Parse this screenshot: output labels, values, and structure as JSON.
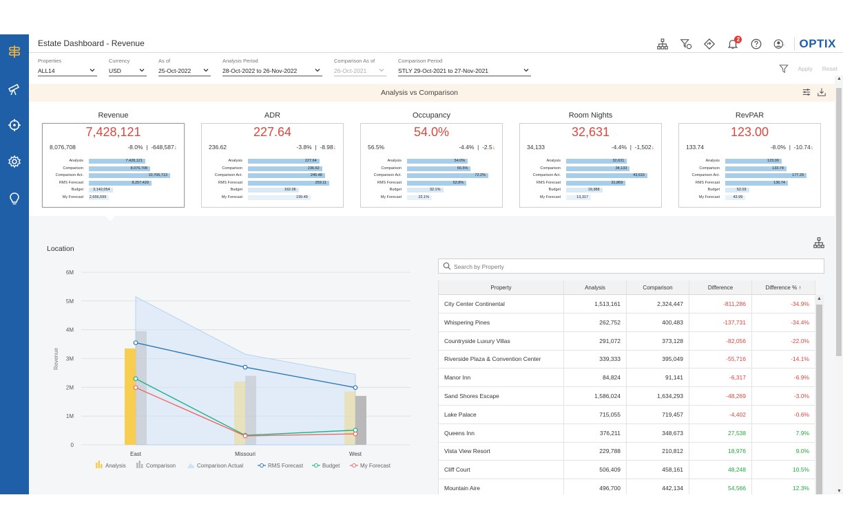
{
  "header": {
    "title": "Estate Dashboard - Revenue",
    "notification_count": "2",
    "brand": "OPTIX",
    "icons": [
      "hierarchy-icon",
      "filter-edit-icon",
      "diamond-nav-icon",
      "bell-icon",
      "help-icon",
      "user-icon"
    ]
  },
  "sidebar": {
    "items": [
      {
        "icon": "signpost-icon",
        "active": true
      },
      {
        "icon": "telescope-icon"
      },
      {
        "icon": "crosshair-icon"
      },
      {
        "icon": "gear-icon"
      },
      {
        "icon": "lightbulb-icon"
      }
    ]
  },
  "filters": {
    "properties": {
      "label": "Properties",
      "value": "ALL14"
    },
    "currency": {
      "label": "Currency",
      "value": "USD"
    },
    "as_of": {
      "label": "As of",
      "value": "25-Oct-2022"
    },
    "analysis_period": {
      "label": "Analysis Period",
      "value": "28-Oct-2022 to 26-Nov-2022"
    },
    "comparison_as_of": {
      "label": "Comparison As of",
      "value": "26-Oct-2021"
    },
    "comparison_period": {
      "label": "Comparison Period",
      "value": "STLY 29-Oct-2021 to 27-Nov-2021"
    },
    "apply_label": "Apply",
    "reset_label": "Reset"
  },
  "banner": {
    "title": "Analysis vs Comparison"
  },
  "bar_labels": [
    "Analysis",
    "Comparison",
    "Comparison Act.",
    "RMS Forecast",
    "Budget",
    "My Forecast"
  ],
  "kpis": [
    {
      "title": "Revenue",
      "value": "7,428,121",
      "comparison": "8,076,708",
      "diff_pct": "-8.0%",
      "diff_abs": "-648,587",
      "selected": true,
      "bars": [
        "7,428,121",
        "8,076,708",
        "10,706,713",
        "8,257,429",
        "3,142,054",
        "2,656,599"
      ],
      "fractions": [
        0.694,
        0.754,
        1.0,
        0.771,
        0.293,
        0.248
      ]
    },
    {
      "title": "ADR",
      "value": "227.64",
      "comparison": "236.62",
      "diff_pct": "-3.8%",
      "diff_abs": "-8.98",
      "selected": false,
      "bars": [
        "227.64",
        "236.62",
        "245.48",
        "259.11",
        "162.06",
        "199.49"
      ],
      "fractions": [
        0.879,
        0.913,
        0.947,
        1.0,
        0.625,
        0.77
      ]
    },
    {
      "title": "Occupancy",
      "value": "54.0%",
      "comparison": "56.5%",
      "diff_pct": "-4.4%",
      "diff_abs": "-2.5",
      "selected": false,
      "bars": [
        "54.0%",
        "56.5%",
        "72.2%",
        "52.8%",
        "32.1%",
        "22.1%"
      ],
      "fractions": [
        0.748,
        0.783,
        1.0,
        0.731,
        0.445,
        0.306
      ]
    },
    {
      "title": "Room Nights",
      "value": "32,631",
      "comparison": "34,133",
      "diff_pct": "-4.4%",
      "diff_abs": "-1,502",
      "selected": false,
      "bars": [
        "32,631",
        "34,133",
        "43,615",
        "31,869",
        "19,388",
        "13,317"
      ],
      "fractions": [
        0.748,
        0.783,
        1.0,
        0.731,
        0.445,
        0.305
      ]
    },
    {
      "title": "RevPAR",
      "value": "123.00",
      "comparison": "133.74",
      "diff_pct": "-8.0%",
      "diff_abs": "-10.74",
      "selected": false,
      "bars": [
        "123.00",
        "133.74",
        "177.29",
        "136.74",
        "52.03",
        "43.99"
      ],
      "fractions": [
        0.694,
        0.754,
        1.0,
        0.771,
        0.293,
        0.248
      ]
    }
  ],
  "location": {
    "title": "Location"
  },
  "chart_data": {
    "type": "bar",
    "ylabel": "Revenue",
    "xlabel": "",
    "ylim": [
      0,
      6000000
    ],
    "yticks": [
      "0",
      "1M",
      "2M",
      "3M",
      "4M",
      "5M",
      "6M"
    ],
    "categories": [
      "East",
      "Missouri",
      "West"
    ],
    "series": [
      {
        "name": "Analysis",
        "type": "bar",
        "color": "#f7ce4f",
        "values": [
          3350000,
          2200000,
          1850000
        ]
      },
      {
        "name": "Comparison",
        "type": "bar",
        "color": "#b9b9b9",
        "values": [
          3950000,
          2400000,
          1700000
        ]
      },
      {
        "name": "Comparison Actual",
        "type": "area",
        "color": "#cfe3f7",
        "values": [
          5150000,
          3150000,
          2450000
        ]
      },
      {
        "name": "RMS Forecast",
        "type": "line",
        "color": "#2b78b8",
        "values": [
          3550000,
          2700000,
          1990000
        ]
      },
      {
        "name": "Budget",
        "type": "line",
        "color": "#1db386",
        "values": [
          2300000,
          330000,
          510000
        ]
      },
      {
        "name": "My Forecast",
        "type": "line",
        "color": "#ee6a63",
        "values": [
          1990000,
          310000,
          380000
        ]
      }
    ],
    "legend_position": "bottom"
  },
  "search": {
    "placeholder": "Search by Property"
  },
  "table": {
    "headers": [
      "Property",
      "Analysis",
      "Comparison",
      "Difference",
      "Difference %"
    ],
    "sort_indicator": "↑",
    "rows": [
      {
        "property": "City Center Continental",
        "analysis": "1,513,161",
        "comparison": "2,324,447",
        "difference": "-811,286",
        "difference_pct": "-34.9%",
        "sign": "neg"
      },
      {
        "property": "Whispering Pines",
        "analysis": "262,752",
        "comparison": "400,483",
        "difference": "-137,731",
        "difference_pct": "-34.4%",
        "sign": "neg"
      },
      {
        "property": "Countryside Luxury Villas",
        "analysis": "291,072",
        "comparison": "373,128",
        "difference": "-82,056",
        "difference_pct": "-22.0%",
        "sign": "neg"
      },
      {
        "property": "Riverside Plaza & Convention Center",
        "analysis": "339,333",
        "comparison": "395,049",
        "difference": "-55,716",
        "difference_pct": "-14.1%",
        "sign": "neg"
      },
      {
        "property": "Manor Inn",
        "analysis": "84,824",
        "comparison": "91,141",
        "difference": "-6,317",
        "difference_pct": "-6.9%",
        "sign": "neg"
      },
      {
        "property": "Sand Shores Escape",
        "analysis": "1,586,024",
        "comparison": "1,634,293",
        "difference": "-48,269",
        "difference_pct": "-3.0%",
        "sign": "neg"
      },
      {
        "property": "Lake Palace",
        "analysis": "715,055",
        "comparison": "719,457",
        "difference": "-4,402",
        "difference_pct": "-0.6%",
        "sign": "neg"
      },
      {
        "property": "Queens Inn",
        "analysis": "376,211",
        "comparison": "348,673",
        "difference": "27,538",
        "difference_pct": "7.9%",
        "sign": "pos"
      },
      {
        "property": "Vista View Resort",
        "analysis": "229,788",
        "comparison": "210,812",
        "difference": "18,976",
        "difference_pct": "9.0%",
        "sign": "pos"
      },
      {
        "property": "Cliff Court",
        "analysis": "506,409",
        "comparison": "458,161",
        "difference": "48,248",
        "difference_pct": "10.5%",
        "sign": "pos"
      },
      {
        "property": "Mountain Aire",
        "analysis": "496,700",
        "comparison": "442,134",
        "difference": "54,566",
        "difference_pct": "12.3%",
        "sign": "pos"
      }
    ]
  }
}
